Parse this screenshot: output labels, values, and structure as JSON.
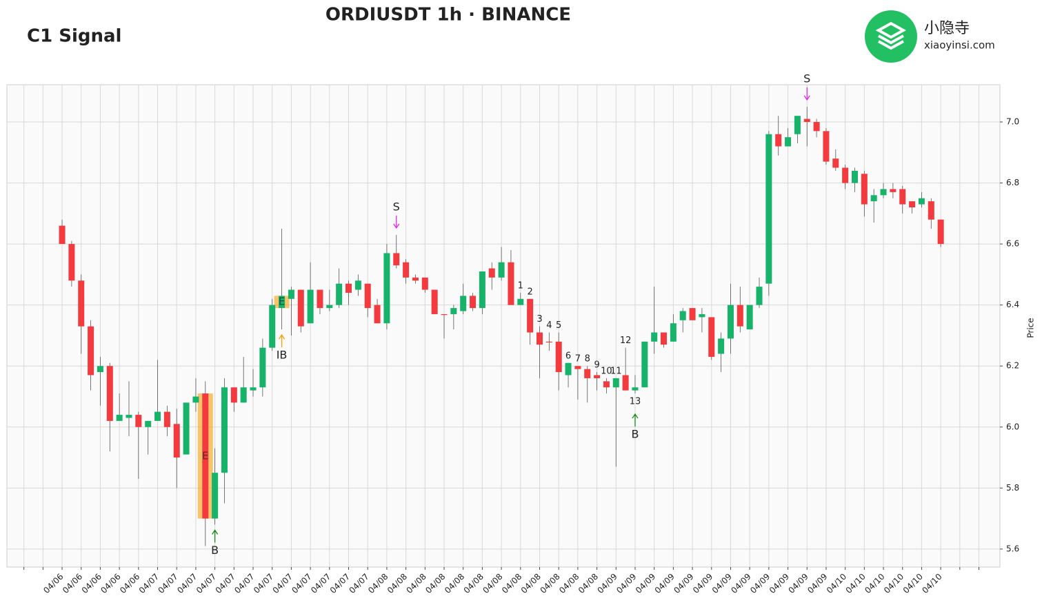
{
  "chart_data": {
    "type": "candlestick",
    "title": "ORDIUSDT 1h · BINANCE",
    "subtitle": "C1 Signal",
    "ylabel": "Price",
    "brand": {
      "name": "小隐寺",
      "site": "xiaoyinsi.com",
      "color": "#22c063"
    },
    "up_color": "#18b36b",
    "down_color": "#f23a3f",
    "grid": true,
    "xlim": [
      -5.78,
      98.2
    ],
    "ylim": [
      5.541,
      7.122
    ],
    "yticks": [
      5.6,
      5.8,
      {
        "value": 6,
        "label": "6.0"
      },
      6.2,
      6.4,
      6.6,
      6.8,
      {
        "value": 7,
        "label": "7.0"
      }
    ],
    "xticks": [
      {
        "value": -4,
        "label": null
      },
      {
        "value": -2,
        "label": null
      },
      {
        "value": 0,
        "label": "04/06"
      },
      {
        "value": 2,
        "label": "04/06"
      },
      {
        "value": 4,
        "label": "04/06"
      },
      {
        "value": 6,
        "label": "04/06"
      },
      {
        "value": 8,
        "label": "04/06"
      },
      {
        "value": 10,
        "label": "04/07"
      },
      {
        "value": 12,
        "label": "04/07"
      },
      {
        "value": 14,
        "label": "04/07"
      },
      {
        "value": 16,
        "label": "04/07"
      },
      {
        "value": 18,
        "label": "04/07"
      },
      {
        "value": 20,
        "label": "04/07"
      },
      {
        "value": 22,
        "label": "04/07"
      },
      {
        "value": 24,
        "label": "04/07"
      },
      {
        "value": 26,
        "label": "04/07"
      },
      {
        "value": 28,
        "label": "04/07"
      },
      {
        "value": 30,
        "label": "04/07"
      },
      {
        "value": 32,
        "label": "04/07"
      },
      {
        "value": 34,
        "label": "04/08"
      },
      {
        "value": 36,
        "label": "04/08"
      },
      {
        "value": 38,
        "label": "04/08"
      },
      {
        "value": 40,
        "label": "04/08"
      },
      {
        "value": 42,
        "label": "04/08"
      },
      {
        "value": 44,
        "label": "04/08"
      },
      {
        "value": 46,
        "label": "04/08"
      },
      {
        "value": 48,
        "label": "04/08"
      },
      {
        "value": 50,
        "label": "04/08"
      },
      {
        "value": 52,
        "label": "04/08"
      },
      {
        "value": 54,
        "label": "04/08"
      },
      {
        "value": 56,
        "label": "04/08"
      },
      {
        "value": 58,
        "label": "04/09"
      },
      {
        "value": 60,
        "label": "04/09"
      },
      {
        "value": 62,
        "label": "04/09"
      },
      {
        "value": 64,
        "label": "04/09"
      },
      {
        "value": 66,
        "label": "04/09"
      },
      {
        "value": 68,
        "label": "04/09"
      },
      {
        "value": 70,
        "label": "04/09"
      },
      {
        "value": 72,
        "label": "04/09"
      },
      {
        "value": 74,
        "label": "04/09"
      },
      {
        "value": 76,
        "label": "04/09"
      },
      {
        "value": 78,
        "label": "04/09"
      },
      {
        "value": 80,
        "label": "04/09"
      },
      {
        "value": 82,
        "label": "04/10"
      },
      {
        "value": 84,
        "label": "04/10"
      },
      {
        "value": 86,
        "label": "04/10"
      },
      {
        "value": 88,
        "label": "04/10"
      },
      {
        "value": 90,
        "label": "04/10"
      },
      {
        "value": 92,
        "label": "04/10"
      },
      {
        "value": 94,
        "label": null
      },
      {
        "value": 96,
        "label": null
      }
    ],
    "open": [
      6.66,
      6.6,
      6.48,
      6.33,
      6.18,
      6.2,
      6.02,
      6.03,
      6.04,
      6.0,
      6.02,
      6.05,
      6.01,
      5.91,
      6.08,
      6.11,
      5.7,
      5.85,
      6.13,
      6.08,
      6.12,
      6.13,
      6.26,
      6.39,
      6.42,
      6.45,
      6.34,
      6.45,
      6.39,
      6.4,
      6.47,
      6.45,
      6.47,
      6.4,
      6.34,
      6.57,
      6.54,
      6.49,
      6.49,
      6.45,
      6.37,
      6.37,
      6.38,
      6.43,
      6.39,
      6.52,
      6.49,
      6.54,
      6.4,
      6.42,
      6.31,
      6.28,
      6.28,
      6.17,
      6.2,
      6.19,
      6.17,
      6.15,
      6.13,
      6.17,
      6.12,
      6.13,
      6.28,
      6.31,
      6.28,
      6.35,
      6.39,
      6.36,
      6.36,
      6.24,
      6.29,
      6.4,
      6.32,
      6.4,
      6.47,
      6.96,
      6.92,
      6.96,
      7.01,
      7.0,
      6.97,
      6.88,
      6.85,
      6.8,
      6.83,
      6.74,
      6.76,
      6.78,
      6.78,
      6.74,
      6.73,
      6.74,
      6.68
    ],
    "high": [
      6.68,
      6.61,
      6.5,
      6.35,
      6.23,
      6.21,
      6.11,
      6.15,
      6.05,
      6.02,
      6.22,
      6.07,
      6.06,
      6.08,
      6.16,
      6.15,
      5.93,
      6.16,
      6.13,
      6.23,
      6.19,
      6.29,
      6.42,
      6.65,
      6.46,
      6.45,
      6.54,
      6.45,
      6.45,
      6.52,
      6.48,
      6.5,
      6.47,
      6.42,
      6.6,
      6.63,
      6.55,
      6.5,
      6.49,
      6.45,
      6.37,
      6.4,
      6.47,
      6.44,
      6.51,
      6.54,
      6.59,
      6.58,
      6.44,
      6.42,
      6.33,
      6.31,
      6.31,
      6.21,
      6.2,
      6.2,
      6.18,
      6.16,
      6.16,
      6.26,
      6.17,
      6.28,
      6.46,
      6.31,
      6.37,
      6.39,
      6.39,
      6.39,
      6.36,
      6.31,
      6.47,
      6.46,
      6.4,
      6.49,
      6.97,
      7.02,
      6.98,
      7.02,
      7.05,
      7.01,
      6.98,
      6.91,
      6.86,
      6.85,
      6.84,
      6.78,
      6.8,
      6.8,
      6.79,
      6.74,
      6.77,
      6.75,
      6.68
    ],
    "low": [
      6.6,
      6.46,
      6.24,
      6.12,
      6.07,
      5.92,
      6.02,
      5.97,
      5.83,
      5.91,
      6.02,
      5.97,
      5.8,
      5.91,
      6.05,
      5.61,
      5.68,
      5.75,
      6.05,
      6.08,
      6.1,
      6.1,
      6.25,
      6.32,
      6.3,
      6.31,
      6.34,
      6.37,
      6.38,
      6.39,
      6.4,
      6.43,
      6.36,
      6.34,
      6.32,
      6.52,
      6.47,
      6.47,
      6.44,
      6.37,
      6.29,
      6.32,
      6.37,
      6.38,
      6.37,
      6.45,
      6.48,
      6.4,
      6.4,
      6.27,
      6.16,
      6.25,
      6.12,
      6.13,
      6.09,
      6.08,
      6.12,
      6.11,
      5.87,
      6.12,
      6.11,
      6.13,
      6.24,
      6.26,
      6.28,
      6.31,
      6.35,
      6.31,
      6.22,
      6.18,
      6.24,
      6.31,
      6.32,
      6.39,
      6.43,
      6.89,
      6.92,
      6.93,
      6.92,
      6.95,
      6.86,
      6.84,
      6.78,
      6.77,
      6.69,
      6.67,
      6.75,
      6.75,
      6.7,
      6.7,
      6.72,
      6.65,
      6.59
    ],
    "close": [
      6.6,
      6.48,
      6.33,
      6.17,
      6.2,
      6.02,
      6.04,
      6.04,
      6.0,
      6.02,
      6.05,
      6.0,
      5.9,
      6.08,
      6.1,
      5.7,
      5.85,
      6.13,
      6.08,
      6.13,
      6.13,
      6.26,
      6.4,
      6.43,
      6.45,
      6.33,
      6.45,
      6.39,
      6.4,
      6.47,
      6.44,
      6.48,
      6.39,
      6.34,
      6.57,
      6.53,
      6.49,
      6.48,
      6.45,
      6.37,
      6.37,
      6.39,
      6.43,
      6.39,
      6.51,
      6.49,
      6.54,
      6.4,
      6.42,
      6.31,
      6.27,
      6.28,
      6.18,
      6.21,
      6.19,
      6.16,
      6.16,
      6.13,
      6.16,
      6.12,
      6.13,
      6.28,
      6.31,
      6.27,
      6.34,
      6.38,
      6.35,
      6.37,
      6.23,
      6.29,
      6.4,
      6.33,
      6.4,
      6.46,
      6.96,
      6.92,
      6.95,
      7.02,
      7.0,
      6.97,
      6.87,
      6.85,
      6.8,
      6.84,
      6.73,
      6.76,
      6.78,
      6.77,
      6.73,
      6.72,
      6.75,
      6.68,
      6.6
    ],
    "zones": [
      {
        "label": "E",
        "index": 15,
        "from": 5.7,
        "to": 6.11
      },
      {
        "label": "E",
        "index": 23,
        "from": 6.39,
        "to": 6.43
      }
    ],
    "signals": [
      {
        "text": "S",
        "index": 35,
        "position": "above",
        "color": "#ee22ee"
      },
      {
        "text": "S",
        "index": 78,
        "position": "above",
        "color": "#ee22ee"
      },
      {
        "text": "B",
        "index": 16,
        "position": "below",
        "color": "#138a13"
      },
      {
        "text": "B",
        "index": 60,
        "position": "below",
        "color": "#138a13"
      },
      {
        "text": "IB",
        "index": 23,
        "position": "below",
        "color": "#f5a00a"
      }
    ],
    "counts": [
      {
        "text": "1",
        "index": 48,
        "position": "above",
        "color": "#ee22ee"
      },
      {
        "text": "2",
        "index": 49,
        "position": "above",
        "color": "#ee22ee"
      },
      {
        "text": "3",
        "index": 50,
        "position": "above",
        "color": "#ee22ee"
      },
      {
        "text": "4",
        "index": 51,
        "position": "above",
        "color": "#ee22ee"
      },
      {
        "text": "5",
        "index": 52,
        "position": "above",
        "color": "#ee22ee"
      },
      {
        "text": "6",
        "index": 53,
        "position": "above",
        "color": "#ee22ee"
      },
      {
        "text": "7",
        "index": 54,
        "position": "above",
        "color": "#ee22ee"
      },
      {
        "text": "8",
        "index": 55,
        "position": "above",
        "color": "#ee22ee"
      },
      {
        "text": "9",
        "index": 56,
        "position": "above",
        "color": "#ee22ee"
      },
      {
        "text": "10",
        "index": 57,
        "position": "above",
        "color": "#ee22ee"
      },
      {
        "text": "11",
        "index": 58,
        "position": "above",
        "color": "#ee22ee"
      },
      {
        "text": "12",
        "index": 59,
        "position": "above",
        "color": "#ee22ee"
      },
      {
        "text": "13",
        "index": 60,
        "position": "below",
        "color": "#1a1add"
      }
    ]
  }
}
